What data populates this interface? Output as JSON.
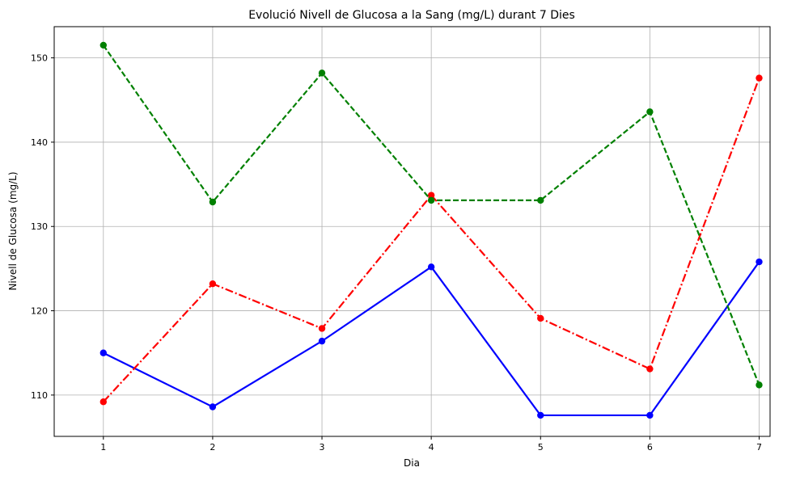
{
  "chart_data": {
    "type": "line",
    "title": "Evolució Nivell de Glucosa a la Sang (mg/L) durant 7 Dies",
    "xlabel": "Dia",
    "ylabel": "Nivell de Glucosa (mg/L)",
    "x": [
      1,
      2,
      3,
      4,
      5,
      6,
      7
    ],
    "xticks": [
      "1",
      "2",
      "3",
      "4",
      "5",
      "6",
      "7"
    ],
    "yticks": [
      "110",
      "120",
      "130",
      "140",
      "150"
    ],
    "xlim": [
      0.55,
      7.1
    ],
    "ylim": [
      105.1,
      153.7
    ],
    "grid": true,
    "series": [
      {
        "color": "#0000ff",
        "linestyle": "solid",
        "values": [
          115.0,
          108.6,
          116.4,
          125.2,
          107.6,
          107.6,
          125.8
        ]
      },
      {
        "color": "#ff0000",
        "linestyle": "dashdot",
        "values": [
          109.2,
          123.2,
          117.9,
          133.7,
          119.1,
          113.1,
          147.6
        ]
      },
      {
        "color": "#008000",
        "linestyle": "dashed",
        "values": [
          151.5,
          132.9,
          148.2,
          133.1,
          133.1,
          143.6,
          111.2
        ]
      }
    ]
  }
}
